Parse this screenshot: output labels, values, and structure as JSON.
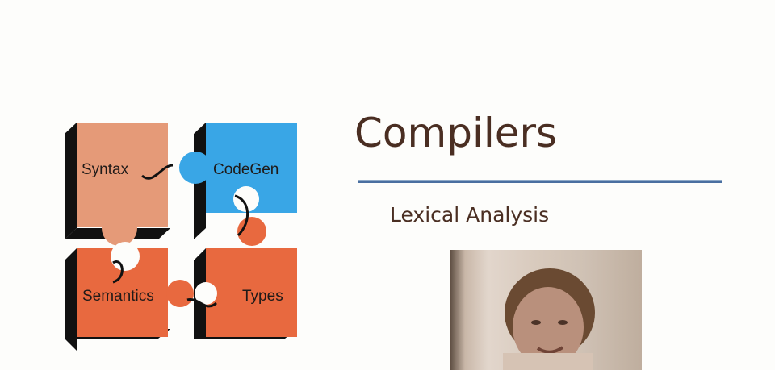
{
  "slide": {
    "title": "Compilers",
    "subtitle": "Lexical Analysis"
  },
  "logo": {
    "pieces": [
      {
        "label": "Syntax",
        "color": "#e59a78"
      },
      {
        "label": "CodeGen",
        "color": "#39a6e6"
      },
      {
        "label": "Semantics",
        "color": "#e8693f"
      },
      {
        "label": "Types",
        "color": "#e8693f"
      }
    ]
  },
  "colors": {
    "title_text": "#4a2e22",
    "rule_light": "#8ea9c8",
    "rule_dark": "#4a6fa0",
    "piece_shadow": "#111111"
  },
  "webcam": {
    "description_icon": "presenter-video-icon"
  }
}
